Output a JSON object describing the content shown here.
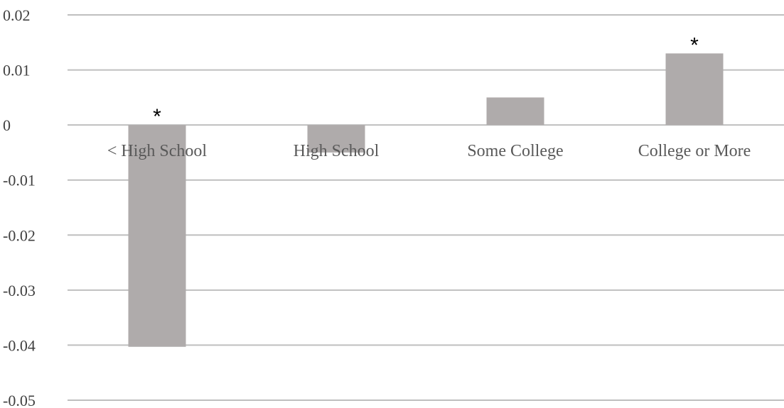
{
  "chart_data": {
    "type": "bar",
    "categories": [
      "< High School",
      "High School",
      "Some College",
      "College or More"
    ],
    "values": [
      -0.0403,
      -0.005,
      0.005,
      0.013
    ],
    "annotations": [
      "*",
      "",
      "",
      "*"
    ],
    "ylim": [
      -0.05,
      0.02
    ],
    "yticks": [
      "0.02",
      "0.01",
      "0",
      "-0.01",
      "-0.02",
      "-0.03",
      "-0.04",
      "-0.05"
    ],
    "grid": true,
    "legend": "none",
    "bar_color": "#afabab",
    "grid_color": "#bfbfbf"
  }
}
